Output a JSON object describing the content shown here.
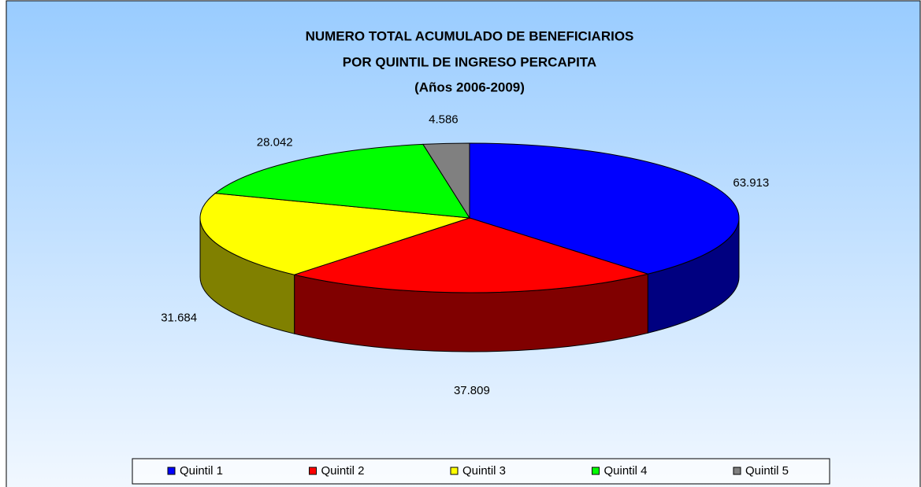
{
  "chart_data": {
    "type": "pie3d",
    "title": [
      "NUMERO TOTAL ACUMULADO DE BENEFICIARIOS",
      "POR QUINTIL DE INGRESO PERCAPITA",
      "(Años 2006-2009)"
    ],
    "categories": [
      "Quintil 1",
      "Quintil 2",
      "Quintil 3",
      "Quintil 4",
      "Quintil 5"
    ],
    "values": [
      63913,
      37809,
      31684,
      28042,
      4586
    ],
    "value_labels": [
      "63.913",
      "37.809",
      "31.684",
      "28.042",
      "4.586"
    ],
    "colors": [
      "#0000ff",
      "#ff0000",
      "#ffff00",
      "#00ff00",
      "#808080"
    ],
    "legend": "bottom"
  }
}
